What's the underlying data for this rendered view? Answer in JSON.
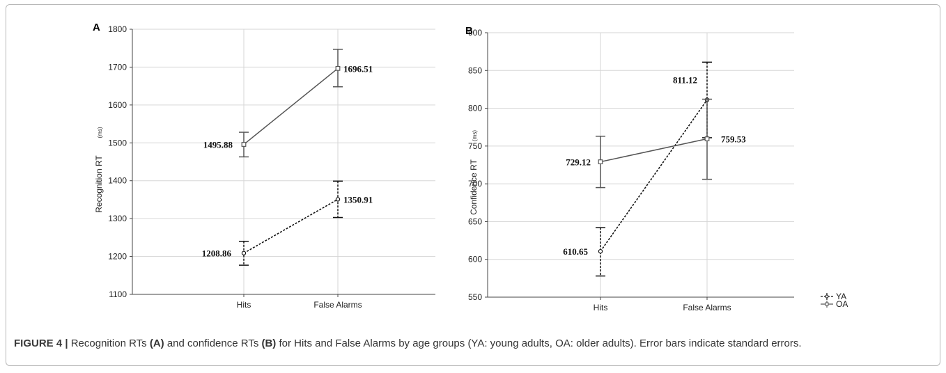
{
  "caption": {
    "label": "FIGURE 4 |",
    "parts": [
      {
        "t": " Recognition RTs ",
        "b": false
      },
      {
        "t": "(A)",
        "b": true
      },
      {
        "t": " and confidence RTs ",
        "b": false
      },
      {
        "t": "(B)",
        "b": true
      },
      {
        "t": " for Hits and False Alarms by age groups (YA: young adults, OA: older adults). Error bars indicate standard errors.",
        "b": false
      }
    ]
  },
  "legend": {
    "entries": [
      {
        "name": "YA",
        "style": "dashed",
        "marker": "circle"
      },
      {
        "name": "OA",
        "style": "solid",
        "marker": "square"
      }
    ]
  },
  "colors": {
    "ya": "#111111",
    "oa": "#555555",
    "grid": "#d6d6d6",
    "axis": "#444444"
  },
  "chart_data": [
    {
      "type": "line",
      "panel": "A",
      "categories": [
        "Hits",
        "False Alarms"
      ],
      "ylabel": "Recognition RT",
      "ylabel_unit": "(ms)",
      "ylim": [
        1100,
        1800
      ],
      "yticks": [
        1100,
        1200,
        1300,
        1400,
        1500,
        1600,
        1700,
        1800
      ],
      "grid": true,
      "series": [
        {
          "name": "YA",
          "values": [
            1208.86,
            1350.91
          ],
          "error_low": [
            1177,
            1303
          ],
          "error_high": [
            1240,
            1399
          ],
          "labels": [
            "1208.86",
            "1350.91"
          ]
        },
        {
          "name": "OA",
          "values": [
            1495.88,
            1696.51
          ],
          "error_low": [
            1463,
            1648
          ],
          "error_high": [
            1528,
            1747
          ],
          "labels": [
            "1495.88",
            "1696.51"
          ]
        }
      ]
    },
    {
      "type": "line",
      "panel": "B",
      "categories": [
        "Hits",
        "False Alarms"
      ],
      "ylabel": "Confidence RT",
      "ylabel_unit": "(ms)",
      "ylim": [
        550,
        900
      ],
      "yticks": [
        550,
        600,
        650,
        700,
        750,
        800,
        850,
        900
      ],
      "grid": true,
      "series": [
        {
          "name": "YA",
          "values": [
            610.65,
            811.12
          ],
          "error_low": [
            578,
            761
          ],
          "error_high": [
            642,
            861
          ],
          "labels": [
            "610.65",
            "811.12"
          ]
        },
        {
          "name": "OA",
          "values": [
            729.12,
            759.53
          ],
          "error_low": [
            695,
            706
          ],
          "error_high": [
            763,
            812
          ],
          "labels": [
            "729.12",
            "759.53"
          ]
        }
      ]
    }
  ]
}
